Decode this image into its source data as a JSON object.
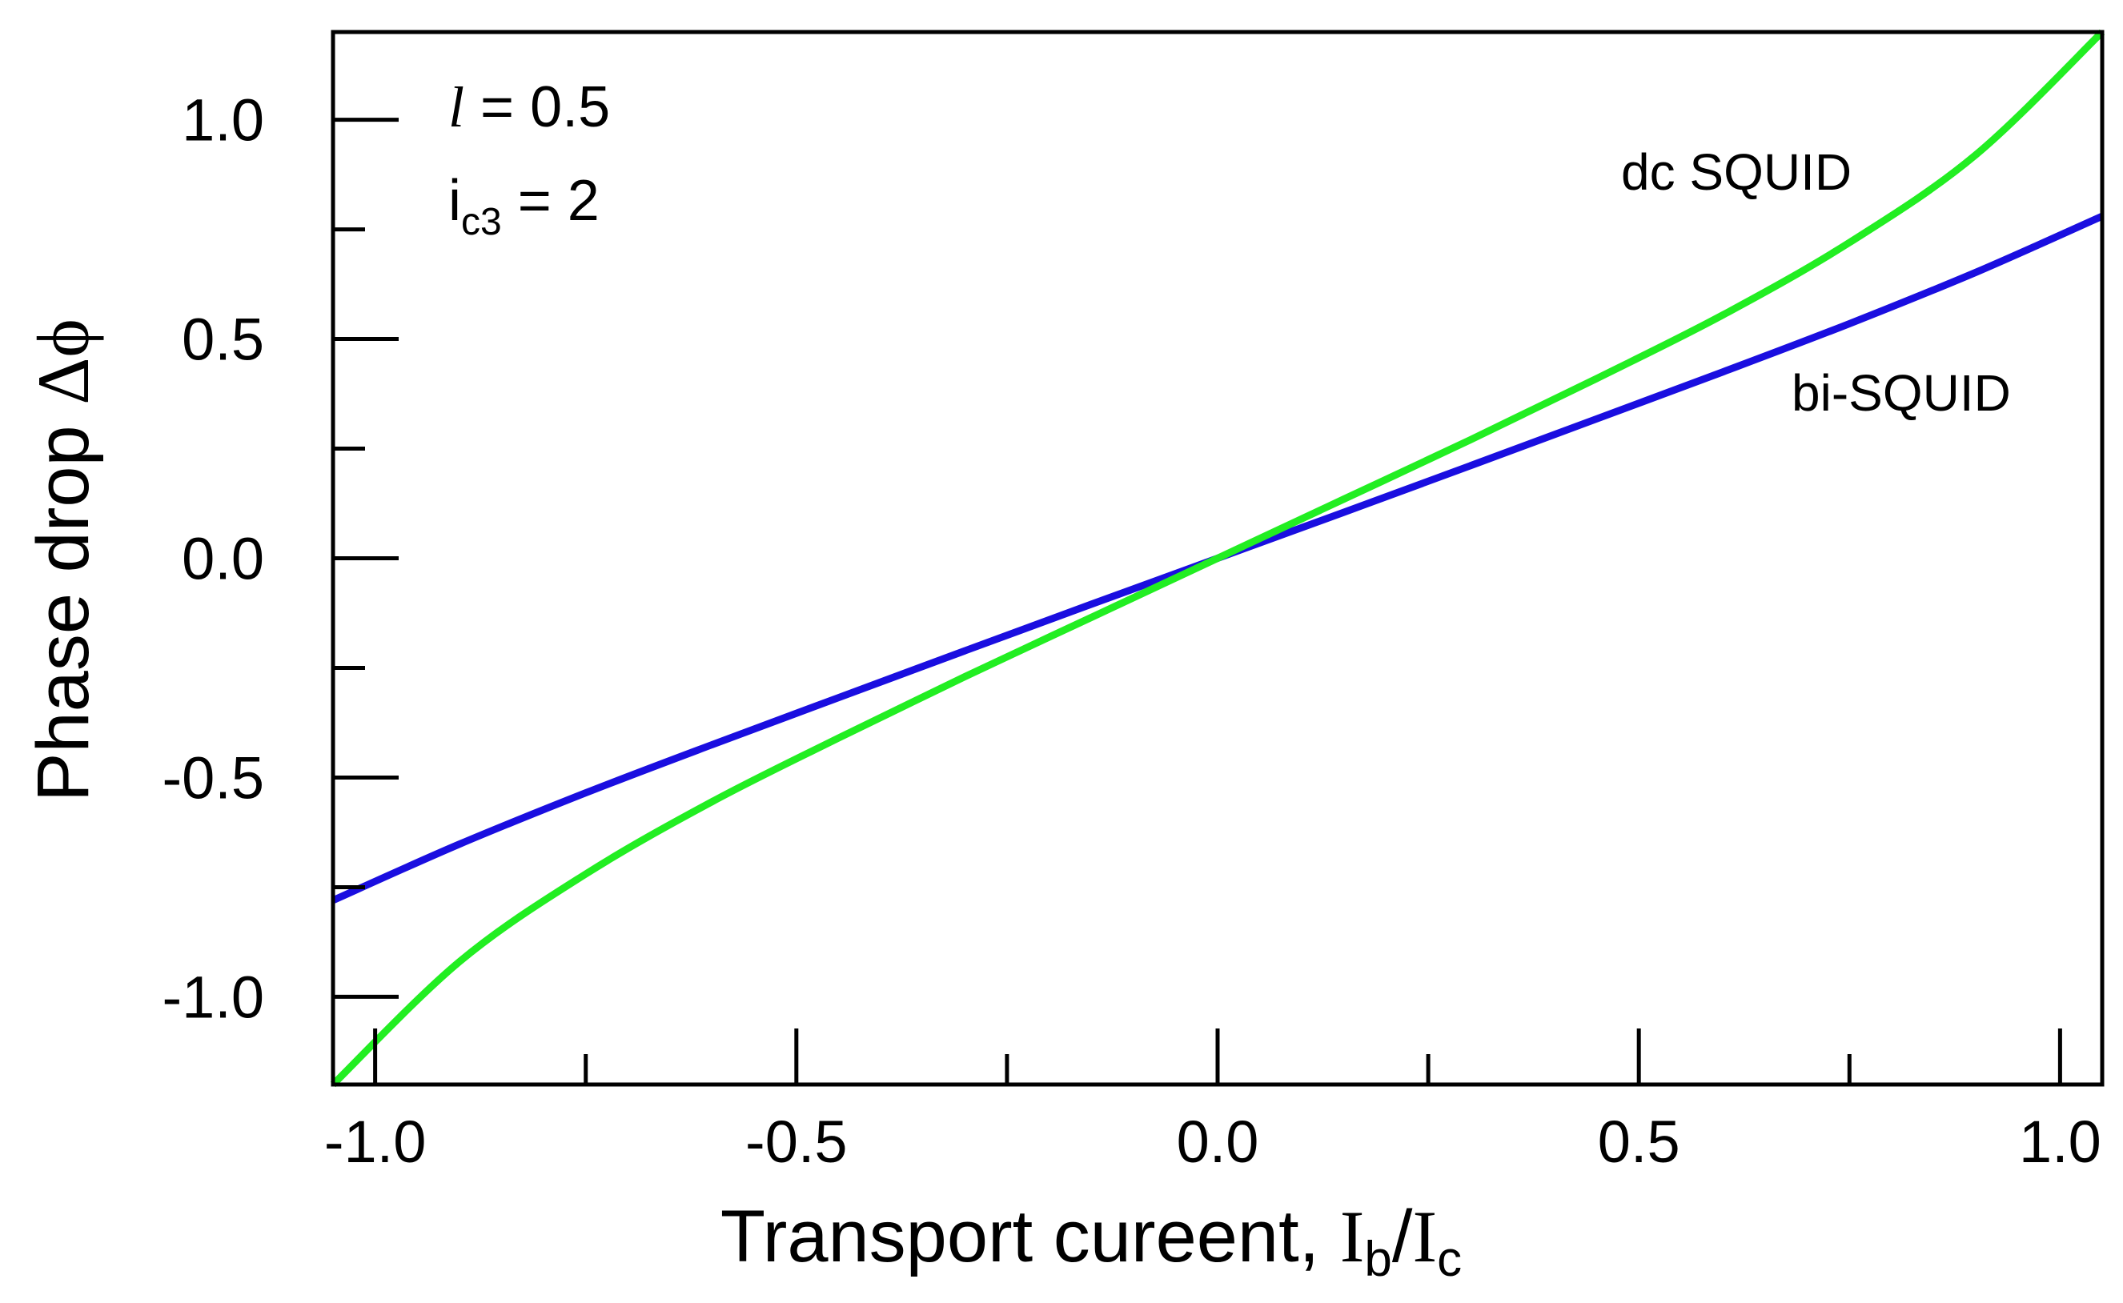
{
  "chart_data": {
    "type": "line",
    "title": "",
    "xlabel": {
      "prefix": "Transport cureent, ",
      "num": "I",
      "num_sub": "b",
      "sep": "/",
      "den": "I",
      "den_sub": "c"
    },
    "ylabel": {
      "prefix": "Phase drop ",
      "symbol": "Δϕ"
    },
    "xlim": [
      -1.05,
      1.05
    ],
    "ylim": [
      -1.2,
      1.2
    ],
    "x_ticks": [
      -1.0,
      -0.75,
      -0.5,
      -0.25,
      0.0,
      0.25,
      0.5,
      0.75,
      1.0
    ],
    "x_tick_labels": [
      {
        "value": -1.0,
        "label": "-1.0"
      },
      {
        "value": -0.5,
        "label": "-0.5"
      },
      {
        "value": 0.0,
        "label": "0.0"
      },
      {
        "value": 0.5,
        "label": "0.5"
      },
      {
        "value": 1.0,
        "label": "1.0"
      }
    ],
    "y_ticks": [
      -1.0,
      -0.75,
      -0.5,
      -0.25,
      0.0,
      0.25,
      0.5,
      0.75,
      1.0
    ],
    "y_tick_labels": [
      {
        "value": 1.0,
        "label": "1.0"
      },
      {
        "value": 0.5,
        "label": "0.5"
      },
      {
        "value": 0.0,
        "label": "0.0"
      },
      {
        "value": -0.5,
        "label": "-0.5"
      },
      {
        "value": -1.0,
        "label": "-1.0"
      }
    ],
    "grid": false,
    "annotations": [
      {
        "italic": "l",
        "text": " = 0.5"
      },
      {
        "base": "i",
        "sub": "c3",
        "text": " = 2"
      }
    ],
    "series": [
      {
        "name": "bi-SQUID",
        "color": "#1a0ee0",
        "x": [
          -1.05,
          -0.9,
          -0.75,
          -0.6,
          -0.45,
          -0.3,
          -0.15,
          0.0,
          0.15,
          0.3,
          0.45,
          0.6,
          0.75,
          0.9,
          1.05
        ],
        "y": [
          -0.78,
          -0.652,
          -0.535,
          -0.425,
          -0.318,
          -0.211,
          -0.105,
          0.0,
          0.105,
          0.211,
          0.318,
          0.425,
          0.535,
          0.652,
          0.78
        ]
      },
      {
        "name": "dc SQUID",
        "color": "#22ee22",
        "x": [
          -1.05,
          -0.9,
          -0.75,
          -0.6,
          -0.45,
          -0.3,
          -0.15,
          0.0,
          0.15,
          0.3,
          0.45,
          0.6,
          0.75,
          0.9,
          1.05
        ],
        "y": [
          -1.2,
          -0.92,
          -0.72,
          -0.555,
          -0.41,
          -0.27,
          -0.135,
          0.0,
          0.135,
          0.27,
          0.41,
          0.555,
          0.72,
          0.92,
          1.2
        ]
      }
    ]
  }
}
